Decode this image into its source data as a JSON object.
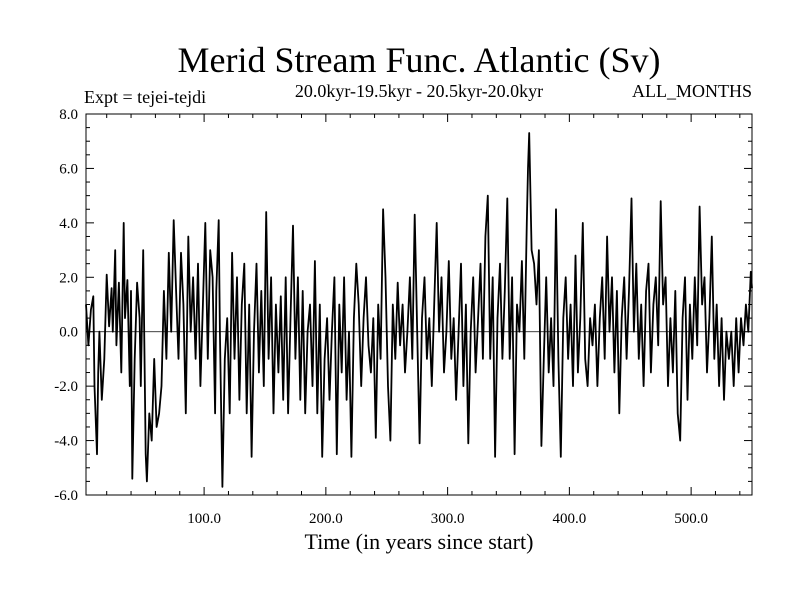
{
  "chart_data": {
    "type": "line",
    "title": "Merid Stream Func. Atlantic (Sv)",
    "subtitle_left": "Expt = tejei-tejdi",
    "subtitle_center": "20.0kyr-19.5kyr - 20.5kyr-20.0kyr",
    "subtitle_right": "ALL_MONTHS",
    "xlabel": "Time (in years since start)",
    "ylabel": "",
    "xlim": [
      3,
      550
    ],
    "ylim": [
      -6.0,
      8.0
    ],
    "xticks": [
      100,
      200,
      300,
      400,
      500
    ],
    "xtick_labels": [
      "100.0",
      "200.0",
      "300.0",
      "400.0",
      "500.0"
    ],
    "yticks": [
      -6,
      -4,
      -2,
      0,
      2,
      4,
      6,
      8
    ],
    "ytick_labels": [
      "-6.0",
      "-4.0",
      "-2.0",
      "0.0",
      "2.0",
      "4.0",
      "6.0",
      "8.0"
    ],
    "zero_line": true,
    "grid": false,
    "series": [
      {
        "name": "",
        "color": "#000000",
        "points": [
          [
            3,
            1.0
          ],
          [
            5,
            -0.5
          ],
          [
            7,
            0.8
          ],
          [
            9,
            1.3
          ],
          [
            10,
            -2.0
          ],
          [
            12,
            -4.5
          ],
          [
            13,
            -1.5
          ],
          [
            14,
            0.0
          ],
          [
            16,
            -2.5
          ],
          [
            18,
            -1.0
          ],
          [
            20,
            2.1
          ],
          [
            22,
            0.2
          ],
          [
            24,
            1.6
          ],
          [
            25,
            0.0
          ],
          [
            27,
            3.0
          ],
          [
            28,
            -0.5
          ],
          [
            30,
            1.8
          ],
          [
            32,
            -1.5
          ],
          [
            34,
            4.0
          ],
          [
            35,
            0.5
          ],
          [
            37,
            1.9
          ],
          [
            39,
            -2.0
          ],
          [
            40,
            1.5
          ],
          [
            41,
            -5.4
          ],
          [
            43,
            -1.0
          ],
          [
            45,
            1.8
          ],
          [
            47,
            0.5
          ],
          [
            48,
            -2.0
          ],
          [
            50,
            3.0
          ],
          [
            52,
            -4.5
          ],
          [
            53,
            -5.5
          ],
          [
            55,
            -3.0
          ],
          [
            57,
            -4.0
          ],
          [
            59,
            -1.0
          ],
          [
            61,
            -3.5
          ],
          [
            63,
            -3.0
          ],
          [
            65,
            -2.0
          ],
          [
            67,
            1.5
          ],
          [
            69,
            -1.0
          ],
          [
            71,
            2.9
          ],
          [
            73,
            0.0
          ],
          [
            75,
            4.1
          ],
          [
            77,
            1.5
          ],
          [
            79,
            -1.0
          ],
          [
            81,
            2.9
          ],
          [
            83,
            1.0
          ],
          [
            85,
            -3.0
          ],
          [
            87,
            3.5
          ],
          [
            89,
            0.0
          ],
          [
            91,
            2.0
          ],
          [
            93,
            -1.0
          ],
          [
            95,
            2.5
          ],
          [
            97,
            -2.0
          ],
          [
            99,
            1.0
          ],
          [
            101,
            4.0
          ],
          [
            103,
            -1.0
          ],
          [
            105,
            3.0
          ],
          [
            107,
            2.0
          ],
          [
            109,
            -3.0
          ],
          [
            110,
            1.5
          ],
          [
            112,
            4.1
          ],
          [
            113,
            0.0
          ],
          [
            115,
            -5.7
          ],
          [
            117,
            -1.0
          ],
          [
            119,
            0.5
          ],
          [
            121,
            -3.0
          ],
          [
            123,
            2.9
          ],
          [
            125,
            -1.0
          ],
          [
            127,
            2.0
          ],
          [
            129,
            -2.5
          ],
          [
            131,
            1.0
          ],
          [
            133,
            2.5
          ],
          [
            135,
            -3.0
          ],
          [
            137,
            1.0
          ],
          [
            139,
            -4.6
          ],
          [
            141,
            0.0
          ],
          [
            143,
            2.5
          ],
          [
            145,
            -1.5
          ],
          [
            147,
            1.5
          ],
          [
            149,
            -2.0
          ],
          [
            151,
            4.4
          ],
          [
            153,
            -1.0
          ],
          [
            155,
            2.0
          ],
          [
            157,
            -3.0
          ],
          [
            159,
            1.0
          ],
          [
            161,
            -1.5
          ],
          [
            163,
            1.3
          ],
          [
            165,
            -2.5
          ],
          [
            167,
            2.0
          ],
          [
            169,
            -3.0
          ],
          [
            171,
            0.5
          ],
          [
            173,
            3.9
          ],
          [
            175,
            -1.0
          ],
          [
            177,
            2.0
          ],
          [
            179,
            -2.5
          ],
          [
            181,
            1.5
          ],
          [
            183,
            -3.0
          ],
          [
            185,
            0.0
          ],
          [
            187,
            1.0
          ],
          [
            189,
            -2.0
          ],
          [
            191,
            2.6
          ],
          [
            193,
            -3.0
          ],
          [
            195,
            1.0
          ],
          [
            197,
            -4.6
          ],
          [
            199,
            -1.0
          ],
          [
            201,
            0.5
          ],
          [
            203,
            -2.5
          ],
          [
            205,
            0.0
          ],
          [
            207,
            2.0
          ],
          [
            209,
            -4.5
          ],
          [
            211,
            1.0
          ],
          [
            213,
            -1.5
          ],
          [
            215,
            2.0
          ],
          [
            217,
            -2.5
          ],
          [
            219,
            0.0
          ],
          [
            221,
            -4.6
          ],
          [
            223,
            0.5
          ],
          [
            225,
            2.5
          ],
          [
            227,
            1.0
          ],
          [
            229,
            -2.0
          ],
          [
            231,
            0.5
          ],
          [
            233,
            2.0
          ],
          [
            235,
            -0.5
          ],
          [
            237,
            -1.5
          ],
          [
            239,
            0.5
          ],
          [
            241,
            -3.9
          ],
          [
            243,
            1.0
          ],
          [
            245,
            -1.0
          ],
          [
            247,
            4.5
          ],
          [
            249,
            2.0
          ],
          [
            251,
            -2.0
          ],
          [
            253,
            -4.0
          ],
          [
            255,
            1.0
          ],
          [
            257,
            -1.0
          ],
          [
            259,
            1.8
          ],
          [
            261,
            -0.5
          ],
          [
            263,
            1.0
          ],
          [
            265,
            -1.5
          ],
          [
            267,
            0.0
          ],
          [
            269,
            2.0
          ],
          [
            271,
            -1.0
          ],
          [
            273,
            4.3
          ],
          [
            275,
            0.0
          ],
          [
            277,
            -4.1
          ],
          [
            279,
            0.5
          ],
          [
            281,
            2.0
          ],
          [
            283,
            -1.0
          ],
          [
            285,
            0.5
          ],
          [
            287,
            -2.0
          ],
          [
            289,
            1.0
          ],
          [
            291,
            4.0
          ],
          [
            293,
            0.0
          ],
          [
            295,
            2.0
          ],
          [
            297,
            -1.5
          ],
          [
            299,
            0.0
          ],
          [
            301,
            2.6
          ],
          [
            303,
            -1.0
          ],
          [
            305,
            0.5
          ],
          [
            307,
            -2.5
          ],
          [
            309,
            0.0
          ],
          [
            311,
            2.5
          ],
          [
            313,
            -2.0
          ],
          [
            315,
            1.0
          ],
          [
            317,
            -4.1
          ],
          [
            319,
            0.0
          ],
          [
            321,
            2.0
          ],
          [
            323,
            -1.5
          ],
          [
            325,
            0.5
          ],
          [
            327,
            2.5
          ],
          [
            329,
            -1.0
          ],
          [
            331,
            3.5
          ],
          [
            333,
            5.0
          ],
          [
            335,
            -1.0
          ],
          [
            337,
            2.0
          ],
          [
            339,
            -4.6
          ],
          [
            341,
            0.5
          ],
          [
            343,
            2.5
          ],
          [
            345,
            -1.0
          ],
          [
            347,
            1.5
          ],
          [
            349,
            4.9
          ],
          [
            351,
            -1.0
          ],
          [
            353,
            2.0
          ],
          [
            355,
            -4.5
          ],
          [
            357,
            1.0
          ],
          [
            359,
            0.0
          ],
          [
            361,
            2.6
          ],
          [
            363,
            -1.0
          ],
          [
            365,
            4.0
          ],
          [
            366,
            6.0
          ],
          [
            367,
            7.3
          ],
          [
            369,
            3.0
          ],
          [
            371,
            2.5
          ],
          [
            373,
            1.0
          ],
          [
            375,
            3.0
          ],
          [
            377,
            -4.2
          ],
          [
            379,
            -1.0
          ],
          [
            381,
            2.0
          ],
          [
            383,
            -1.5
          ],
          [
            385,
            0.5
          ],
          [
            387,
            -2.0
          ],
          [
            389,
            4.5
          ],
          [
            391,
            -1.0
          ],
          [
            393,
            -4.6
          ],
          [
            395,
            0.5
          ],
          [
            397,
            2.0
          ],
          [
            399,
            -1.0
          ],
          [
            401,
            1.0
          ],
          [
            403,
            -2.0
          ],
          [
            405,
            2.8
          ],
          [
            407,
            -1.5
          ],
          [
            409,
            0.5
          ],
          [
            411,
            4.0
          ],
          [
            413,
            -1.0
          ],
          [
            415,
            -2.0
          ],
          [
            417,
            0.5
          ],
          [
            419,
            -0.5
          ],
          [
            421,
            1.0
          ],
          [
            423,
            -2.0
          ],
          [
            425,
            0.5
          ],
          [
            427,
            2.0
          ],
          [
            429,
            -1.0
          ],
          [
            431,
            3.5
          ],
          [
            433,
            0.0
          ],
          [
            435,
            2.0
          ],
          [
            437,
            -1.5
          ],
          [
            439,
            1.5
          ],
          [
            441,
            -3.0
          ],
          [
            443,
            0.5
          ],
          [
            445,
            2.0
          ],
          [
            447,
            -1.0
          ],
          [
            449,
            1.5
          ],
          [
            451,
            4.9
          ],
          [
            453,
            0.0
          ],
          [
            455,
            2.5
          ],
          [
            457,
            -1.0
          ],
          [
            459,
            1.0
          ],
          [
            461,
            -2.0
          ],
          [
            463,
            1.5
          ],
          [
            465,
            2.5
          ],
          [
            467,
            -1.5
          ],
          [
            469,
            1.0
          ],
          [
            471,
            2.0
          ],
          [
            473,
            -0.5
          ],
          [
            475,
            4.8
          ],
          [
            477,
            1.0
          ],
          [
            479,
            2.0
          ],
          [
            481,
            -2.0
          ],
          [
            483,
            0.5
          ],
          [
            485,
            -1.5
          ],
          [
            487,
            1.5
          ],
          [
            489,
            -3.0
          ],
          [
            491,
            -4.0
          ],
          [
            493,
            0.5
          ],
          [
            495,
            2.0
          ],
          [
            497,
            -2.5
          ],
          [
            499,
            1.0
          ],
          [
            501,
            -1.0
          ],
          [
            503,
            2.0
          ],
          [
            505,
            -0.5
          ],
          [
            507,
            4.6
          ],
          [
            509,
            1.0
          ],
          [
            511,
            2.0
          ],
          [
            513,
            -1.5
          ],
          [
            515,
            0.5
          ],
          [
            517,
            3.5
          ],
          [
            519,
            -1.0
          ],
          [
            521,
            1.0
          ],
          [
            523,
            -2.0
          ],
          [
            525,
            0.5
          ],
          [
            527,
            -2.5
          ],
          [
            529,
            0.0
          ],
          [
            531,
            -1.0
          ],
          [
            533,
            0.0
          ],
          [
            535,
            -2.0
          ],
          [
            537,
            0.5
          ],
          [
            539,
            -1.5
          ],
          [
            541,
            0.5
          ],
          [
            543,
            -0.5
          ],
          [
            545,
            1.0
          ],
          [
            547,
            0.0
          ],
          [
            549,
            2.2
          ],
          [
            550,
            1.6
          ]
        ]
      }
    ]
  }
}
